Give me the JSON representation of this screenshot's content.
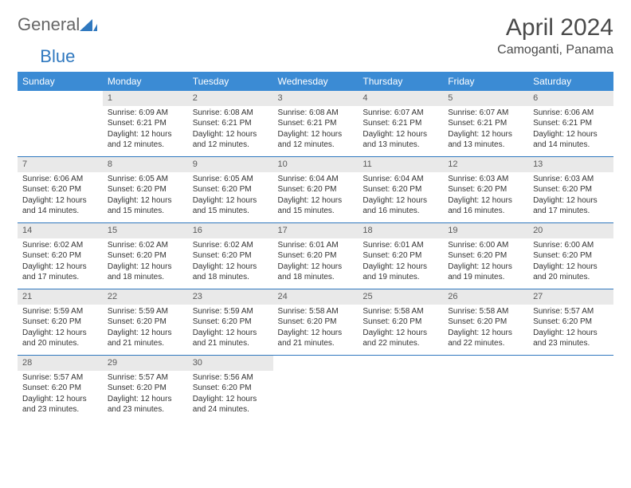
{
  "brand": {
    "part1": "General",
    "part2": "Blue"
  },
  "title": "April 2024",
  "location": "Camoganti, Panama",
  "colors": {
    "header_bg": "#3b8bd4",
    "header_text": "#ffffff",
    "row_border": "#2f78bf",
    "daynum_bg": "#e9e9e9",
    "brand_blue": "#2f78bf"
  },
  "weekdays": [
    "Sunday",
    "Monday",
    "Tuesday",
    "Wednesday",
    "Thursday",
    "Friday",
    "Saturday"
  ],
  "weeks": [
    [
      {
        "n": "",
        "sr": "",
        "ss": "",
        "dl": ""
      },
      {
        "n": "1",
        "sr": "6:09 AM",
        "ss": "6:21 PM",
        "dl": "12 hours and 12 minutes."
      },
      {
        "n": "2",
        "sr": "6:08 AM",
        "ss": "6:21 PM",
        "dl": "12 hours and 12 minutes."
      },
      {
        "n": "3",
        "sr": "6:08 AM",
        "ss": "6:21 PM",
        "dl": "12 hours and 12 minutes."
      },
      {
        "n": "4",
        "sr": "6:07 AM",
        "ss": "6:21 PM",
        "dl": "12 hours and 13 minutes."
      },
      {
        "n": "5",
        "sr": "6:07 AM",
        "ss": "6:21 PM",
        "dl": "12 hours and 13 minutes."
      },
      {
        "n": "6",
        "sr": "6:06 AM",
        "ss": "6:21 PM",
        "dl": "12 hours and 14 minutes."
      }
    ],
    [
      {
        "n": "7",
        "sr": "6:06 AM",
        "ss": "6:20 PM",
        "dl": "12 hours and 14 minutes."
      },
      {
        "n": "8",
        "sr": "6:05 AM",
        "ss": "6:20 PM",
        "dl": "12 hours and 15 minutes."
      },
      {
        "n": "9",
        "sr": "6:05 AM",
        "ss": "6:20 PM",
        "dl": "12 hours and 15 minutes."
      },
      {
        "n": "10",
        "sr": "6:04 AM",
        "ss": "6:20 PM",
        "dl": "12 hours and 15 minutes."
      },
      {
        "n": "11",
        "sr": "6:04 AM",
        "ss": "6:20 PM",
        "dl": "12 hours and 16 minutes."
      },
      {
        "n": "12",
        "sr": "6:03 AM",
        "ss": "6:20 PM",
        "dl": "12 hours and 16 minutes."
      },
      {
        "n": "13",
        "sr": "6:03 AM",
        "ss": "6:20 PM",
        "dl": "12 hours and 17 minutes."
      }
    ],
    [
      {
        "n": "14",
        "sr": "6:02 AM",
        "ss": "6:20 PM",
        "dl": "12 hours and 17 minutes."
      },
      {
        "n": "15",
        "sr": "6:02 AM",
        "ss": "6:20 PM",
        "dl": "12 hours and 18 minutes."
      },
      {
        "n": "16",
        "sr": "6:02 AM",
        "ss": "6:20 PM",
        "dl": "12 hours and 18 minutes."
      },
      {
        "n": "17",
        "sr": "6:01 AM",
        "ss": "6:20 PM",
        "dl": "12 hours and 18 minutes."
      },
      {
        "n": "18",
        "sr": "6:01 AM",
        "ss": "6:20 PM",
        "dl": "12 hours and 19 minutes."
      },
      {
        "n": "19",
        "sr": "6:00 AM",
        "ss": "6:20 PM",
        "dl": "12 hours and 19 minutes."
      },
      {
        "n": "20",
        "sr": "6:00 AM",
        "ss": "6:20 PM",
        "dl": "12 hours and 20 minutes."
      }
    ],
    [
      {
        "n": "21",
        "sr": "5:59 AM",
        "ss": "6:20 PM",
        "dl": "12 hours and 20 minutes."
      },
      {
        "n": "22",
        "sr": "5:59 AM",
        "ss": "6:20 PM",
        "dl": "12 hours and 21 minutes."
      },
      {
        "n": "23",
        "sr": "5:59 AM",
        "ss": "6:20 PM",
        "dl": "12 hours and 21 minutes."
      },
      {
        "n": "24",
        "sr": "5:58 AM",
        "ss": "6:20 PM",
        "dl": "12 hours and 21 minutes."
      },
      {
        "n": "25",
        "sr": "5:58 AM",
        "ss": "6:20 PM",
        "dl": "12 hours and 22 minutes."
      },
      {
        "n": "26",
        "sr": "5:58 AM",
        "ss": "6:20 PM",
        "dl": "12 hours and 22 minutes."
      },
      {
        "n": "27",
        "sr": "5:57 AM",
        "ss": "6:20 PM",
        "dl": "12 hours and 23 minutes."
      }
    ],
    [
      {
        "n": "28",
        "sr": "5:57 AM",
        "ss": "6:20 PM",
        "dl": "12 hours and 23 minutes."
      },
      {
        "n": "29",
        "sr": "5:57 AM",
        "ss": "6:20 PM",
        "dl": "12 hours and 23 minutes."
      },
      {
        "n": "30",
        "sr": "5:56 AM",
        "ss": "6:20 PM",
        "dl": "12 hours and 24 minutes."
      },
      {
        "n": "",
        "sr": "",
        "ss": "",
        "dl": ""
      },
      {
        "n": "",
        "sr": "",
        "ss": "",
        "dl": ""
      },
      {
        "n": "",
        "sr": "",
        "ss": "",
        "dl": ""
      },
      {
        "n": "",
        "sr": "",
        "ss": "",
        "dl": ""
      }
    ]
  ],
  "labels": {
    "sunrise": "Sunrise:",
    "sunset": "Sunset:",
    "daylight": "Daylight:"
  }
}
